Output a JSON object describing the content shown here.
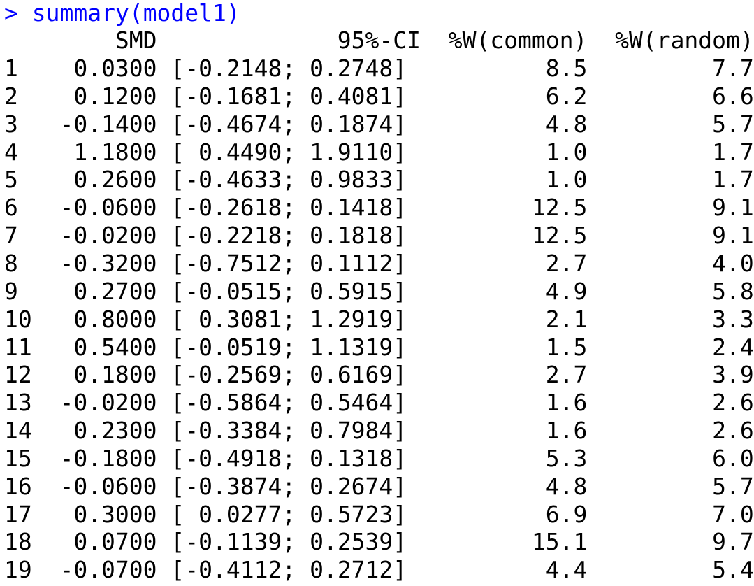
{
  "prompt": {
    "symbol": ">",
    "command": "summary(model1)",
    "color": "#0000ff"
  },
  "output_color": "#000000",
  "table": {
    "columns": [
      "",
      "SMD",
      "95%-CI",
      "%W(common)",
      "%W(random)"
    ],
    "rows": [
      {
        "id": "1",
        "smd": "0.0300",
        "ci_low": "-0.2148",
        "ci_high": "0.2748",
        "w_common": "8.5",
        "w_random": "7.7"
      },
      {
        "id": "2",
        "smd": "0.1200",
        "ci_low": "-0.1681",
        "ci_high": "0.4081",
        "w_common": "6.2",
        "w_random": "6.6"
      },
      {
        "id": "3",
        "smd": "-0.1400",
        "ci_low": "-0.4674",
        "ci_high": "0.1874",
        "w_common": "4.8",
        "w_random": "5.7"
      },
      {
        "id": "4",
        "smd": "1.1800",
        "ci_low": "0.4490",
        "ci_high": "1.9110",
        "w_common": "1.0",
        "w_random": "1.7"
      },
      {
        "id": "5",
        "smd": "0.2600",
        "ci_low": "-0.4633",
        "ci_high": "0.9833",
        "w_common": "1.0",
        "w_random": "1.7"
      },
      {
        "id": "6",
        "smd": "-0.0600",
        "ci_low": "-0.2618",
        "ci_high": "0.1418",
        "w_common": "12.5",
        "w_random": "9.1"
      },
      {
        "id": "7",
        "smd": "-0.0200",
        "ci_low": "-0.2218",
        "ci_high": "0.1818",
        "w_common": "12.5",
        "w_random": "9.1"
      },
      {
        "id": "8",
        "smd": "-0.3200",
        "ci_low": "-0.7512",
        "ci_high": "0.1112",
        "w_common": "2.7",
        "w_random": "4.0"
      },
      {
        "id": "9",
        "smd": "0.2700",
        "ci_low": "-0.0515",
        "ci_high": "0.5915",
        "w_common": "4.9",
        "w_random": "5.8"
      },
      {
        "id": "10",
        "smd": "0.8000",
        "ci_low": "0.3081",
        "ci_high": "1.2919",
        "w_common": "2.1",
        "w_random": "3.3"
      },
      {
        "id": "11",
        "smd": "0.5400",
        "ci_low": "-0.0519",
        "ci_high": "1.1319",
        "w_common": "1.5",
        "w_random": "2.4"
      },
      {
        "id": "12",
        "smd": "0.1800",
        "ci_low": "-0.2569",
        "ci_high": "0.6169",
        "w_common": "2.7",
        "w_random": "3.9"
      },
      {
        "id": "13",
        "smd": "-0.0200",
        "ci_low": "-0.5864",
        "ci_high": "0.5464",
        "w_common": "1.6",
        "w_random": "2.6"
      },
      {
        "id": "14",
        "smd": "0.2300",
        "ci_low": "-0.3384",
        "ci_high": "0.7984",
        "w_common": "1.6",
        "w_random": "2.6"
      },
      {
        "id": "15",
        "smd": "-0.1800",
        "ci_low": "-0.4918",
        "ci_high": "0.1318",
        "w_common": "5.3",
        "w_random": "6.0"
      },
      {
        "id": "16",
        "smd": "-0.0600",
        "ci_low": "-0.3874",
        "ci_high": "0.2674",
        "w_common": "4.8",
        "w_random": "5.7"
      },
      {
        "id": "17",
        "smd": "0.3000",
        "ci_low": "0.0277",
        "ci_high": "0.5723",
        "w_common": "6.9",
        "w_random": "7.0"
      },
      {
        "id": "18",
        "smd": "0.0700",
        "ci_low": "-0.1139",
        "ci_high": "0.2539",
        "w_common": "15.1",
        "w_random": "9.7"
      },
      {
        "id": "19",
        "smd": "-0.0700",
        "ci_low": "-0.4112",
        "ci_high": "0.2712",
        "w_common": "4.4",
        "w_random": "5.4"
      }
    ]
  }
}
